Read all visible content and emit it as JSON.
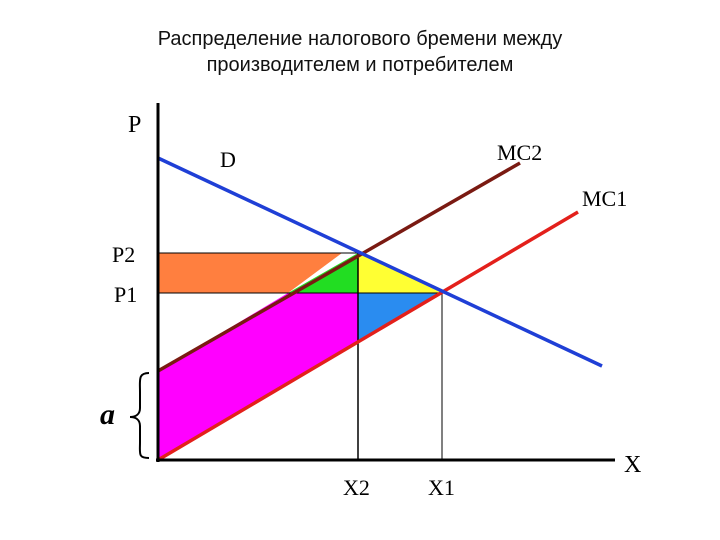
{
  "title": {
    "line1": "Распределение налогового бремени между",
    "line2": "производителем и потребителем"
  },
  "labels": {
    "p_axis": "P",
    "x_axis": "X",
    "demand": "D",
    "mc1": "MC1",
    "mc2": "MC2",
    "p1": "P1",
    "p2": "P2",
    "x1": "X1",
    "x2": "X2",
    "tax": "a"
  },
  "colors": {
    "demand": "#1f3fd6",
    "mc1": "#e3201b",
    "mc2": "#7a1a12",
    "consumer_tax_area": "#ff7f3f",
    "producer_tax_area": "#ff00ff",
    "green_triangle": "#22dd22",
    "yellow_triangle": "#ffff33",
    "blue_triangle": "#2a8cf0",
    "axes": "#000000"
  }
}
